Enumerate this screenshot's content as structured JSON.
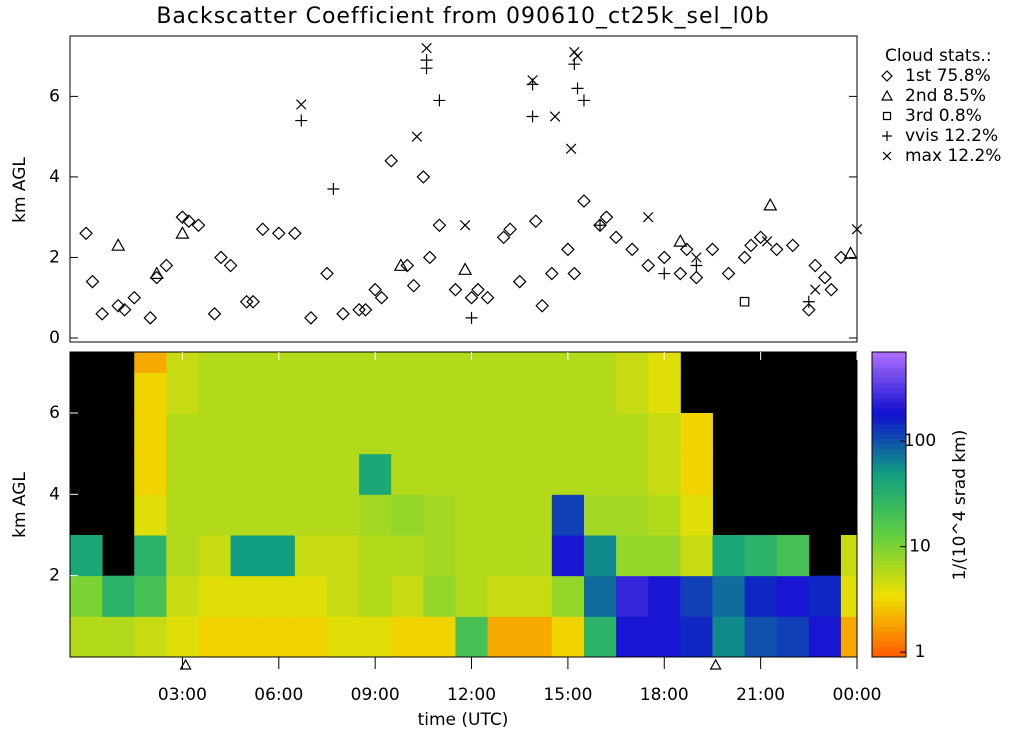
{
  "chart_data": [
    {
      "type": "scatter",
      "title": "Backscatter Coefficient from 090610_ct25k_sel_l0b",
      "y_label": "km AGL",
      "xlim": [
        -0.5,
        24
      ],
      "ylim": [
        -0.1,
        7.5
      ],
      "yticks": [
        0,
        2,
        4,
        6
      ],
      "legend_title": "Cloud stats.:",
      "series": [
        {
          "name": "1st 75.8%",
          "marker": "diamond",
          "color": "#000",
          "x": [
            0,
            0.5,
            1,
            1.5,
            2,
            2.5,
            3,
            3.5,
            4,
            4.5,
            5,
            5.5,
            6,
            6.5,
            7,
            7.5,
            8,
            8.5,
            9,
            9.5,
            10,
            10.5,
            11,
            11.5,
            12,
            12.5,
            13,
            13.5,
            14,
            14.5,
            15,
            15.5,
            16,
            16.5,
            17,
            17.5,
            18,
            18.5,
            19,
            19.5,
            20,
            20.5,
            21,
            21.5,
            22,
            22.5,
            23,
            23.5,
            0.2,
            1.2,
            2.2,
            3.2,
            4.2,
            5.2,
            8.7,
            9.2,
            10.2,
            10.7,
            12.2,
            13.2,
            14.2,
            15.2,
            16.2,
            18.7,
            20.7,
            22.7,
            23.2
          ],
          "y": [
            2.6,
            0.6,
            0.8,
            1.0,
            0.5,
            1.8,
            3.0,
            2.8,
            0.6,
            1.8,
            0.9,
            2.7,
            2.6,
            2.6,
            0.5,
            1.6,
            0.6,
            0.7,
            1.2,
            4.4,
            1.8,
            4.0,
            2.8,
            1.2,
            1.0,
            1.0,
            2.5,
            1.4,
            2.9,
            1.6,
            2.2,
            3.4,
            2.8,
            2.5,
            2.2,
            1.8,
            2.0,
            1.6,
            1.5,
            2.2,
            1.6,
            2.0,
            2.5,
            2.2,
            2.3,
            0.7,
            1.5,
            2.0,
            1.4,
            0.7,
            1.5,
            2.9,
            2.0,
            0.9,
            0.7,
            1.0,
            1.3,
            2.0,
            1.2,
            2.7,
            0.8,
            1.6,
            3.0,
            2.2,
            2.3,
            1.8,
            1.2
          ]
        },
        {
          "name": "2nd  8.5%",
          "marker": "triangle",
          "color": "#000",
          "x": [
            1.0,
            2.2,
            3.0,
            9.8,
            11.8,
            18.5,
            21.3,
            23.8
          ],
          "y": [
            2.3,
            1.6,
            2.6,
            1.8,
            1.7,
            2.4,
            3.3,
            2.1
          ]
        },
        {
          "name": "3rd  0.8%",
          "marker": "square",
          "color": "#000",
          "x": [
            20.5
          ],
          "y": [
            0.9
          ]
        },
        {
          "name": "vvis 12.2%",
          "marker": "plus",
          "color": "#000",
          "x": [
            6.7,
            7.7,
            10.6,
            10.6,
            11.0,
            13.9,
            13.9,
            15.2,
            15.3,
            15.5,
            12.0,
            16.0,
            18.0,
            19.0,
            22.5
          ],
          "y": [
            5.4,
            3.7,
            6.9,
            6.7,
            5.9,
            5.5,
            6.3,
            6.8,
            6.2,
            5.9,
            0.5,
            2.8,
            1.6,
            1.8,
            0.9
          ]
        },
        {
          "name": "max 12.2%",
          "marker": "cross",
          "color": "#000",
          "x": [
            6.7,
            10.6,
            10.3,
            13.9,
            15.2,
            15.3,
            14.6,
            15.1,
            11.8,
            17.5,
            19.0,
            21.2,
            22.7,
            24.0
          ],
          "y": [
            5.8,
            7.2,
            5.0,
            6.4,
            7.1,
            7.0,
            5.5,
            4.7,
            2.8,
            3.0,
            2.0,
            2.4,
            1.2,
            2.7
          ]
        }
      ]
    },
    {
      "type": "heatmap",
      "x_label": "time (UTC)",
      "y_label": "km AGL",
      "xlim": [
        -0.5,
        24
      ],
      "ylim": [
        0,
        7.5
      ],
      "xticks": [
        {
          "value": 3,
          "label": "03:00"
        },
        {
          "value": 6,
          "label": "06:00"
        },
        {
          "value": 9,
          "label": "09:00"
        },
        {
          "value": 12,
          "label": "12:00"
        },
        {
          "value": 15,
          "label": "15:00"
        },
        {
          "value": 18,
          "label": "18:00"
        },
        {
          "value": 21,
          "label": "21:00"
        },
        {
          "value": 24,
          "label": "00:00"
        }
      ],
      "yticks": [
        2,
        4,
        6
      ],
      "sun_markers_x": [
        3.1,
        19.6
      ],
      "x": [
        0,
        1,
        2,
        3,
        4,
        5,
        6,
        7,
        8,
        9,
        10,
        11,
        12,
        13,
        14,
        15,
        16,
        17,
        18,
        19,
        20,
        21,
        22,
        23,
        24
      ],
      "y": [
        0.5,
        1.5,
        2.5,
        3.5,
        4.5,
        5.5,
        6.5,
        7.5
      ],
      "z": [
        [
          6,
          6,
          5,
          4,
          3,
          3,
          3,
          3,
          4,
          4,
          3,
          3,
          20,
          2,
          2,
          3,
          30,
          200,
          200,
          150,
          60,
          100,
          120,
          200,
          2
        ],
        [
          10,
          30,
          20,
          5,
          4,
          4,
          4,
          4,
          5,
          6,
          5,
          8,
          6,
          5,
          5,
          8,
          80,
          250,
          200,
          120,
          80,
          150,
          200,
          150,
          4
        ],
        [
          40,
          null,
          30,
          6,
          5,
          50,
          50,
          5,
          5,
          6,
          6,
          7,
          6,
          6,
          6,
          200,
          60,
          8,
          8,
          5,
          40,
          30,
          20,
          null,
          5
        ],
        [
          null,
          null,
          4,
          6,
          6,
          6,
          6,
          6,
          6,
          7,
          8,
          7,
          6,
          6,
          6,
          120,
          7,
          7,
          6,
          4,
          null,
          null,
          null,
          null,
          null
        ],
        [
          null,
          null,
          3,
          6,
          6,
          6,
          6,
          6,
          6,
          40,
          6,
          6,
          6,
          6,
          6,
          6,
          6,
          6,
          5,
          3,
          null,
          null,
          null,
          null,
          null
        ],
        [
          null,
          null,
          3,
          6,
          6,
          6,
          6,
          6,
          6,
          6,
          6,
          6,
          6,
          6,
          6,
          6,
          6,
          6,
          5,
          3,
          null,
          null,
          null,
          null,
          null
        ],
        [
          null,
          null,
          3,
          5,
          6,
          6,
          6,
          6,
          6,
          6,
          6,
          6,
          6,
          6,
          6,
          6,
          6,
          5,
          4,
          null,
          null,
          null,
          null,
          null,
          null
        ],
        [
          null,
          null,
          2,
          5,
          6,
          6,
          6,
          6,
          6,
          6,
          6,
          6,
          6,
          6,
          6,
          6,
          6,
          5,
          4,
          null,
          null,
          null,
          null,
          null,
          null
        ]
      ],
      "colorbar_label": "1/(10^4 srad km)",
      "log_scale": true,
      "clim": [
        0.9,
        700
      ],
      "cticks": [
        1,
        10,
        100
      ],
      "colormap": [
        "#ff5a00",
        "#f0e000",
        "#60d040",
        "#10a080",
        "#1010d0",
        "#b070ff"
      ]
    }
  ]
}
